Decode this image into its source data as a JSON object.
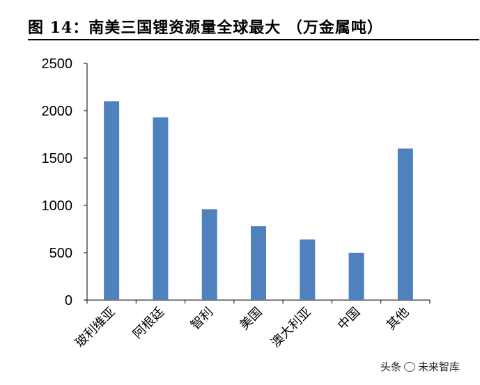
{
  "title": "图 14：南美三国锂资源量全球最大 （万金属吨）",
  "watermark": {
    "left": "头条",
    "right": "未来智库",
    "icon": "wechat-icon"
  },
  "chart_data": {
    "type": "bar",
    "categories": [
      "玻利维亚",
      "阿根廷",
      "智利",
      "美国",
      "澳大利亚",
      "中国",
      "其他"
    ],
    "values": [
      2100,
      1930,
      960,
      780,
      640,
      500,
      1600
    ],
    "ylim": [
      0,
      2500
    ],
    "yticks": [
      0,
      500,
      1000,
      1500,
      2000,
      2500
    ],
    "bar_color": "#4F81BD",
    "grid": false,
    "legend": "none"
  }
}
